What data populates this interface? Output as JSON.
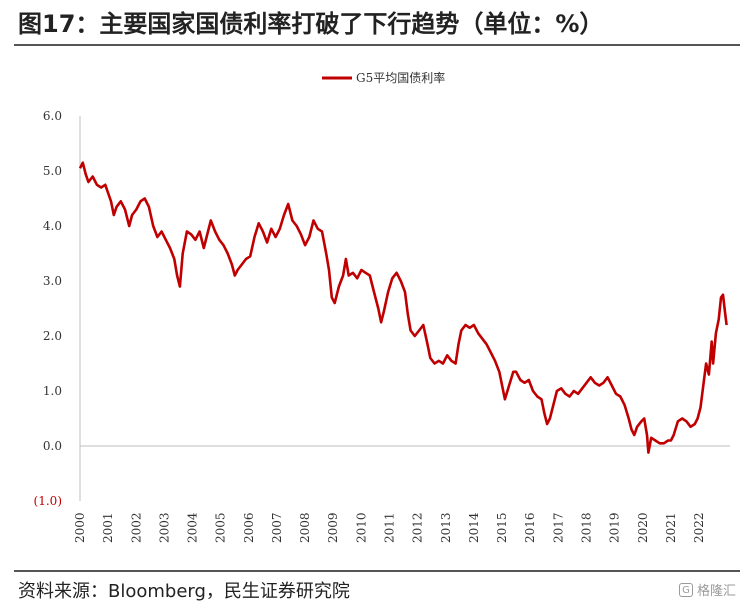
{
  "figure": {
    "title": "图17：主要国家国债利率打破了下行趋势（单位：%）",
    "source": "资料来源：Bloomberg，民生证券研究院",
    "watermark": "格隆汇"
  },
  "colors": {
    "series": "#c00000",
    "axis": "#bfbfbf",
    "negative_label": "#c00000"
  },
  "chart_data": {
    "type": "line",
    "legend_position": "top-center",
    "grid": false,
    "ylim": [
      -1.0,
      6.0
    ],
    "yticks": [
      {
        "value": 6.0,
        "label": "6.0"
      },
      {
        "value": 5.0,
        "label": "5.0"
      },
      {
        "value": 4.0,
        "label": "4.0"
      },
      {
        "value": 3.0,
        "label": "3.0"
      },
      {
        "value": 2.0,
        "label": "2.0"
      },
      {
        "value": 1.0,
        "label": "1.0"
      },
      {
        "value": 0.0,
        "label": "0.0"
      },
      {
        "value": -1.0,
        "label": "(1.0)"
      }
    ],
    "xlim": [
      2000,
      2023.1
    ],
    "xticks": [
      "2000",
      "2001",
      "2002",
      "2003",
      "2004",
      "2005",
      "2006",
      "2007",
      "2008",
      "2009",
      "2010",
      "2011",
      "2012",
      "2013",
      "2014",
      "2015",
      "2016",
      "2017",
      "2018",
      "2019",
      "2020",
      "2021",
      "2022"
    ],
    "series": [
      {
        "name": "G5平均国债利率",
        "points": [
          [
            2000.0,
            5.05
          ],
          [
            2000.1,
            5.15
          ],
          [
            2000.2,
            4.95
          ],
          [
            2000.3,
            4.8
          ],
          [
            2000.45,
            4.9
          ],
          [
            2000.6,
            4.75
          ],
          [
            2000.75,
            4.7
          ],
          [
            2000.9,
            4.75
          ],
          [
            2001.0,
            4.6
          ],
          [
            2001.1,
            4.45
          ],
          [
            2001.2,
            4.2
          ],
          [
            2001.3,
            4.35
          ],
          [
            2001.45,
            4.45
          ],
          [
            2001.6,
            4.3
          ],
          [
            2001.75,
            4.0
          ],
          [
            2001.85,
            4.2
          ],
          [
            2002.0,
            4.3
          ],
          [
            2002.15,
            4.45
          ],
          [
            2002.3,
            4.5
          ],
          [
            2002.45,
            4.35
          ],
          [
            2002.6,
            4.0
          ],
          [
            2002.75,
            3.8
          ],
          [
            2002.9,
            3.9
          ],
          [
            2003.05,
            3.75
          ],
          [
            2003.2,
            3.6
          ],
          [
            2003.35,
            3.4
          ],
          [
            2003.45,
            3.1
          ],
          [
            2003.55,
            2.9
          ],
          [
            2003.65,
            3.5
          ],
          [
            2003.8,
            3.9
          ],
          [
            2003.95,
            3.85
          ],
          [
            2004.1,
            3.75
          ],
          [
            2004.25,
            3.9
          ],
          [
            2004.4,
            3.6
          ],
          [
            2004.55,
            3.9
          ],
          [
            2004.65,
            4.1
          ],
          [
            2004.8,
            3.9
          ],
          [
            2004.95,
            3.75
          ],
          [
            2005.1,
            3.65
          ],
          [
            2005.25,
            3.5
          ],
          [
            2005.4,
            3.3
          ],
          [
            2005.5,
            3.1
          ],
          [
            2005.6,
            3.2
          ],
          [
            2005.75,
            3.3
          ],
          [
            2005.9,
            3.4
          ],
          [
            2006.05,
            3.45
          ],
          [
            2006.2,
            3.8
          ],
          [
            2006.35,
            4.05
          ],
          [
            2006.5,
            3.9
          ],
          [
            2006.65,
            3.7
          ],
          [
            2006.8,
            3.95
          ],
          [
            2006.95,
            3.8
          ],
          [
            2007.1,
            3.95
          ],
          [
            2007.25,
            4.2
          ],
          [
            2007.4,
            4.4
          ],
          [
            2007.55,
            4.1
          ],
          [
            2007.7,
            4.0
          ],
          [
            2007.85,
            3.85
          ],
          [
            2008.0,
            3.65
          ],
          [
            2008.15,
            3.8
          ],
          [
            2008.3,
            4.1
          ],
          [
            2008.45,
            3.95
          ],
          [
            2008.6,
            3.9
          ],
          [
            2008.75,
            3.5
          ],
          [
            2008.85,
            3.2
          ],
          [
            2008.95,
            2.7
          ],
          [
            2009.05,
            2.6
          ],
          [
            2009.2,
            2.9
          ],
          [
            2009.35,
            3.1
          ],
          [
            2009.45,
            3.4
          ],
          [
            2009.55,
            3.1
          ],
          [
            2009.7,
            3.15
          ],
          [
            2009.85,
            3.05
          ],
          [
            2010.0,
            3.2
          ],
          [
            2010.15,
            3.15
          ],
          [
            2010.3,
            3.1
          ],
          [
            2010.45,
            2.8
          ],
          [
            2010.6,
            2.5
          ],
          [
            2010.7,
            2.25
          ],
          [
            2010.8,
            2.45
          ],
          [
            2010.95,
            2.8
          ],
          [
            2011.1,
            3.05
          ],
          [
            2011.25,
            3.15
          ],
          [
            2011.4,
            3.0
          ],
          [
            2011.55,
            2.8
          ],
          [
            2011.65,
            2.4
          ],
          [
            2011.75,
            2.1
          ],
          [
            2011.9,
            2.0
          ],
          [
            2012.05,
            2.1
          ],
          [
            2012.2,
            2.2
          ],
          [
            2012.35,
            1.85
          ],
          [
            2012.45,
            1.6
          ],
          [
            2012.6,
            1.5
          ],
          [
            2012.75,
            1.55
          ],
          [
            2012.9,
            1.5
          ],
          [
            2013.05,
            1.65
          ],
          [
            2013.2,
            1.55
          ],
          [
            2013.35,
            1.5
          ],
          [
            2013.45,
            1.85
          ],
          [
            2013.55,
            2.1
          ],
          [
            2013.7,
            2.2
          ],
          [
            2013.85,
            2.15
          ],
          [
            2014.0,
            2.2
          ],
          [
            2014.15,
            2.05
          ],
          [
            2014.3,
            1.95
          ],
          [
            2014.45,
            1.85
          ],
          [
            2014.6,
            1.7
          ],
          [
            2014.75,
            1.55
          ],
          [
            2014.9,
            1.35
          ],
          [
            2015.0,
            1.1
          ],
          [
            2015.1,
            0.85
          ],
          [
            2015.25,
            1.1
          ],
          [
            2015.4,
            1.35
          ],
          [
            2015.5,
            1.35
          ],
          [
            2015.65,
            1.2
          ],
          [
            2015.8,
            1.15
          ],
          [
            2015.95,
            1.2
          ],
          [
            2016.1,
            1.0
          ],
          [
            2016.25,
            0.9
          ],
          [
            2016.4,
            0.85
          ],
          [
            2016.5,
            0.6
          ],
          [
            2016.6,
            0.4
          ],
          [
            2016.7,
            0.5
          ],
          [
            2016.85,
            0.8
          ],
          [
            2016.95,
            1.0
          ],
          [
            2017.1,
            1.05
          ],
          [
            2017.25,
            0.95
          ],
          [
            2017.4,
            0.9
          ],
          [
            2017.55,
            1.0
          ],
          [
            2017.7,
            0.95
          ],
          [
            2017.85,
            1.05
          ],
          [
            2018.0,
            1.15
          ],
          [
            2018.15,
            1.25
          ],
          [
            2018.3,
            1.15
          ],
          [
            2018.45,
            1.1
          ],
          [
            2018.6,
            1.15
          ],
          [
            2018.75,
            1.25
          ],
          [
            2018.9,
            1.1
          ],
          [
            2019.05,
            0.95
          ],
          [
            2019.2,
            0.9
          ],
          [
            2019.35,
            0.75
          ],
          [
            2019.5,
            0.5
          ],
          [
            2019.6,
            0.3
          ],
          [
            2019.7,
            0.2
          ],
          [
            2019.8,
            0.35
          ],
          [
            2019.95,
            0.45
          ],
          [
            2020.05,
            0.5
          ],
          [
            2020.15,
            0.2
          ],
          [
            2020.2,
            -0.12
          ],
          [
            2020.3,
            0.15
          ],
          [
            2020.45,
            0.1
          ],
          [
            2020.6,
            0.05
          ],
          [
            2020.75,
            0.05
          ],
          [
            2020.9,
            0.1
          ],
          [
            2021.0,
            0.1
          ],
          [
            2021.1,
            0.2
          ],
          [
            2021.25,
            0.45
          ],
          [
            2021.4,
            0.5
          ],
          [
            2021.55,
            0.45
          ],
          [
            2021.7,
            0.35
          ],
          [
            2021.85,
            0.4
          ],
          [
            2021.95,
            0.5
          ],
          [
            2022.05,
            0.7
          ],
          [
            2022.15,
            1.1
          ],
          [
            2022.25,
            1.5
          ],
          [
            2022.35,
            1.3
          ],
          [
            2022.45,
            1.9
          ],
          [
            2022.5,
            1.5
          ],
          [
            2022.6,
            2.05
          ],
          [
            2022.7,
            2.3
          ],
          [
            2022.78,
            2.7
          ],
          [
            2022.85,
            2.75
          ],
          [
            2022.92,
            2.45
          ],
          [
            2022.98,
            2.2
          ]
        ]
      }
    ]
  }
}
